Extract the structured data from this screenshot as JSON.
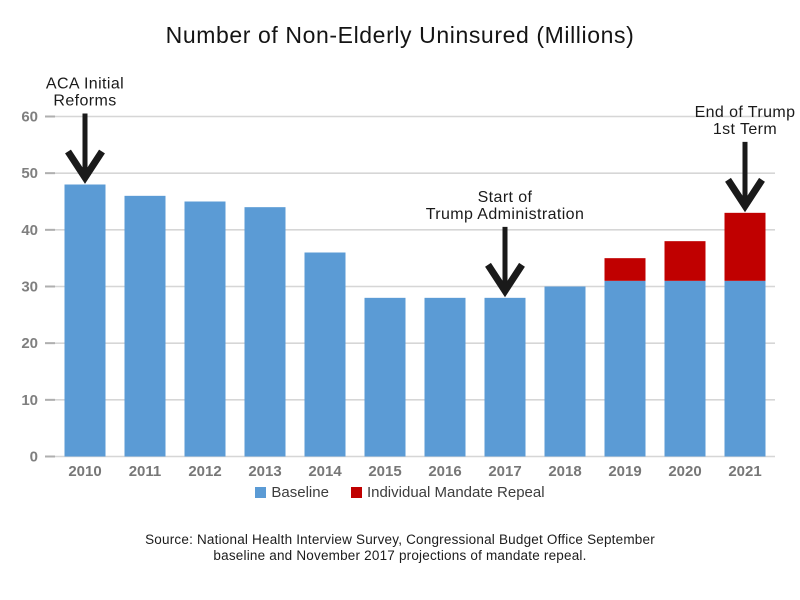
{
  "title": "Number of Non-Elderly Uninsured (Millions)",
  "legend": [
    {
      "label": "Baseline",
      "color": "#5B9BD5"
    },
    {
      "label": "Individual Mandate Repeal",
      "color": "#C00000"
    }
  ],
  "source": {
    "line1": "Source: National Health Interview Survey, Congressional Budget Office September",
    "line2": "baseline and November 2017 projections of mandate repeal."
  },
  "chart_data": {
    "type": "bar",
    "stacked": true,
    "title": "Number of Non-Elderly Uninsured (Millions)",
    "categories": [
      "2010",
      "2011",
      "2012",
      "2013",
      "2014",
      "2015",
      "2016",
      "2017",
      "2018",
      "2019",
      "2020",
      "2021"
    ],
    "series": [
      {
        "name": "Baseline",
        "color": "#5B9BD5",
        "values": [
          48,
          46,
          45,
          44,
          36,
          28,
          28,
          28,
          30,
          31,
          31,
          31
        ]
      },
      {
        "name": "Individual Mandate Repeal",
        "color": "#C00000",
        "values": [
          0,
          0,
          0,
          0,
          0,
          0,
          0,
          0,
          0,
          4,
          7,
          12
        ]
      }
    ],
    "totals": [
      48,
      46,
      45,
      44,
      36,
      28,
      28,
      28,
      30,
      35,
      38,
      43
    ],
    "xlabel": "",
    "ylabel": "",
    "ylim": [
      0,
      60
    ],
    "yticks": [
      0,
      10,
      20,
      30,
      40,
      50,
      60
    ],
    "grid": true,
    "legend_position": "bottom",
    "annotations": [
      {
        "lines": [
          "ACA Initial",
          "Reforms"
        ],
        "category": "2010"
      },
      {
        "lines": [
          "Start of",
          "Trump Administration"
        ],
        "category": "2017"
      },
      {
        "lines": [
          "End of Trump",
          "1st Term"
        ],
        "category": "2021"
      }
    ],
    "colors": {
      "grid": "#D6D6D6",
      "tick": "#AFAFAF",
      "axis_label": "#777777",
      "annotation": "#1a1a1a"
    }
  }
}
